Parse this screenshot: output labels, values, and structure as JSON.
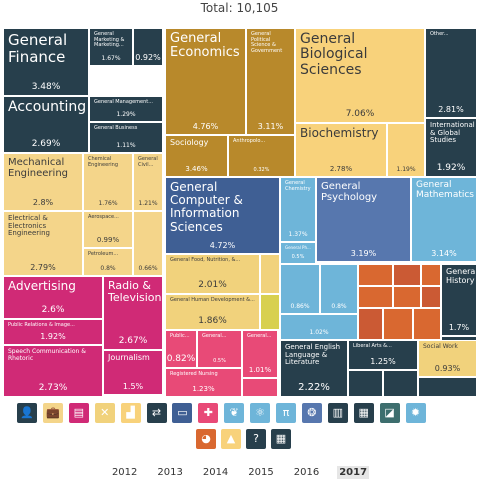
{
  "header": {
    "total_label": "Total: 10,105"
  },
  "colors": {
    "business": "#273f4c",
    "engineering": "#f4d58a",
    "communications": "#d02a76",
    "economics": "#b8892b",
    "biology": "#f8d27b",
    "computer": "#3f5f94",
    "psychology": "#5777ae",
    "physical": "#6eb5d9",
    "humanities": "#f1d27c",
    "health": "#e84a77",
    "education": "#d8d050",
    "social": "#cb5a34",
    "multidisciplinary": "#273f4c",
    "orange": "#d96830"
  },
  "chart_data": {
    "type": "treemap",
    "title": "Total: 10,105",
    "tiles": [
      {
        "name": "General Finance",
        "value": 3.48,
        "label": "3.48%",
        "group": "business"
      },
      {
        "name": "General Marketing & Marketing...",
        "value": 1.67,
        "label": "1.67%",
        "group": "business"
      },
      {
        "name": "",
        "value": 0.92,
        "label": "0.92%",
        "group": "business"
      },
      {
        "name": "Accounting",
        "value": 2.69,
        "label": "2.69%",
        "group": "business"
      },
      {
        "name": "General Management...",
        "value": 1.29,
        "label": "1.29%",
        "group": "business"
      },
      {
        "name": "General Business",
        "value": 1.11,
        "label": "1.11%",
        "group": "business"
      },
      {
        "name": "General Economics",
        "value": 4.76,
        "label": "4.76%",
        "group": "economics"
      },
      {
        "name": "General Political Science & Government",
        "value": 3.11,
        "label": "3.11%",
        "group": "economics"
      },
      {
        "name": "Sociology",
        "value": 3.46,
        "label": "3.46%",
        "group": "economics"
      },
      {
        "name": "Anthropolo...",
        "value": 0.32,
        "label": "0.32%",
        "group": "economics"
      },
      {
        "name": "General Biological Sciences",
        "value": 7.06,
        "label": "7.06%",
        "group": "biology"
      },
      {
        "name": "Biochemistry",
        "value": 2.78,
        "label": "2.78%",
        "group": "biology"
      },
      {
        "name": "",
        "value": 1.19,
        "label": "1.19%",
        "group": "biology"
      },
      {
        "name": "Other...",
        "value": 2.81,
        "label": "2.81%",
        "group": "multidisciplinary"
      },
      {
        "name": "International & Global Studies",
        "value": 1.92,
        "label": "1.92%",
        "group": "multidisciplinary"
      },
      {
        "name": "Mechanical Engineering",
        "value": 2.8,
        "label": "2.8%",
        "group": "engineering"
      },
      {
        "name": "Chemical Engineering",
        "value": 1.76,
        "label": "1.76%",
        "group": "engineering"
      },
      {
        "name": "General Civil...",
        "value": 1.21,
        "label": "1.21%",
        "group": "engineering"
      },
      {
        "name": "Electrical & Electronics Engineering",
        "value": 2.79,
        "label": "2.79%",
        "group": "engineering"
      },
      {
        "name": "Aerospace...",
        "value": 0.99,
        "label": "0.99%",
        "group": "engineering"
      },
      {
        "name": "",
        "value": 0.66,
        "label": "0.66%",
        "group": "engineering"
      },
      {
        "name": "Petroleum...",
        "value": 0.8,
        "label": "0.8%",
        "group": "engineering"
      },
      {
        "name": "General Computer & Information Sciences",
        "value": 4.72,
        "label": "4.72%",
        "group": "computer"
      },
      {
        "name": "General Chemistry",
        "value": 1.37,
        "label": "1.37%",
        "group": "physical"
      },
      {
        "name": "General Ph...",
        "value": 0.5,
        "label": "0.5%",
        "group": "physical"
      },
      {
        "name": "General Psychology",
        "value": 3.19,
        "label": "3.19%",
        "group": "psychology"
      },
      {
        "name": "General Mathematics",
        "value": 3.14,
        "label": "3.14%",
        "group": "physical"
      },
      {
        "name": "General Food, Nutrition, &...",
        "value": 2.01,
        "label": "2.01%",
        "group": "humanities"
      },
      {
        "name": "General Human Development &...",
        "value": 1.86,
        "label": "1.86%",
        "group": "humanities"
      },
      {
        "name": "",
        "value": 0.86,
        "label": "0.86%",
        "group": "physical"
      },
      {
        "name": "",
        "value": 0.8,
        "label": "0.8%",
        "group": "physical"
      },
      {
        "name": "",
        "value": 1.02,
        "label": "1.02%",
        "group": "physical"
      },
      {
        "name": "General History",
        "value": 1.7,
        "label": "1.7%",
        "group": "multidisciplinary"
      },
      {
        "name": "Advertising",
        "value": 2.6,
        "label": "2.6%",
        "group": "communications"
      },
      {
        "name": "Radio & Television",
        "value": 2.67,
        "label": "2.67%",
        "group": "communications"
      },
      {
        "name": "Public Relations & Image...",
        "value": 1.92,
        "label": "1.92%",
        "group": "communications"
      },
      {
        "name": "Journalism",
        "value": 1.5,
        "label": "1.5%",
        "group": "communications"
      },
      {
        "name": "Speech Communication & Rhetoric",
        "value": 2.73,
        "label": "2.73%",
        "group": "communications"
      },
      {
        "name": "Public...",
        "value": 0.82,
        "label": "0.82%",
        "group": "health"
      },
      {
        "name": "General...",
        "value": 0.5,
        "label": "0.5%",
        "group": "health"
      },
      {
        "name": "General...",
        "value": 1.01,
        "label": "1.01%",
        "group": "health"
      },
      {
        "name": "Registered Nursing",
        "value": 1.23,
        "label": "1.23%",
        "group": "health"
      },
      {
        "name": "General English Language & Literature",
        "value": 2.22,
        "label": "2.22%",
        "group": "multidisciplinary"
      },
      {
        "name": "Liberal Arts &...",
        "value": 1.25,
        "label": "1.25%",
        "group": "multidisciplinary"
      },
      {
        "name": "Social Work",
        "value": 0.93,
        "label": "0.93%",
        "group": "humanities"
      }
    ]
  },
  "icons": [
    {
      "name": "person-icon",
      "glyph": "👤",
      "color": "#273f4c"
    },
    {
      "name": "briefcase-icon",
      "glyph": "💼",
      "color": "#f4d58a"
    },
    {
      "name": "document-icon",
      "glyph": "▤",
      "color": "#d02a76"
    },
    {
      "name": "tools-icon",
      "glyph": "✕",
      "color": "#f1d27c"
    },
    {
      "name": "chart-icon",
      "glyph": "▟",
      "color": "#f8d27b"
    },
    {
      "name": "arrows-icon",
      "glyph": "⇄",
      "color": "#273f4c"
    },
    {
      "name": "computer-icon",
      "glyph": "▭",
      "color": "#3f5f94"
    },
    {
      "name": "plus-icon",
      "glyph": "✚",
      "color": "#e84a77"
    },
    {
      "name": "leaf-icon",
      "glyph": "❦",
      "color": "#6eb5d9"
    },
    {
      "name": "atom-icon",
      "glyph": "⚛",
      "color": "#6eb5d9"
    },
    {
      "name": "pi-icon",
      "glyph": "π",
      "color": "#6eb5d9"
    },
    {
      "name": "brain-icon",
      "glyph": "❂",
      "color": "#5777ae"
    },
    {
      "name": "book-icon",
      "glyph": "▥",
      "color": "#273f4c"
    },
    {
      "name": "bookshelf-icon",
      "glyph": "▦",
      "color": "#273f4c"
    },
    {
      "name": "graph-icon",
      "glyph": "◪",
      "color": "#3d6e6e"
    },
    {
      "name": "gear-icon",
      "glyph": "✹",
      "color": "#6eb5d9"
    },
    {
      "name": "globe-icon",
      "glyph": "◕",
      "color": "#d96830"
    },
    {
      "name": "mountain-icon",
      "glyph": "▲",
      "color": "#f8d27b"
    },
    {
      "name": "question-icon",
      "glyph": "?",
      "color": "#273f4c"
    },
    {
      "name": "grid-icon",
      "glyph": "▦",
      "color": "#273f4c"
    }
  ],
  "years": [
    "2012",
    "2013",
    "2014",
    "2015",
    "2016",
    "2017"
  ],
  "active_year": "2017"
}
